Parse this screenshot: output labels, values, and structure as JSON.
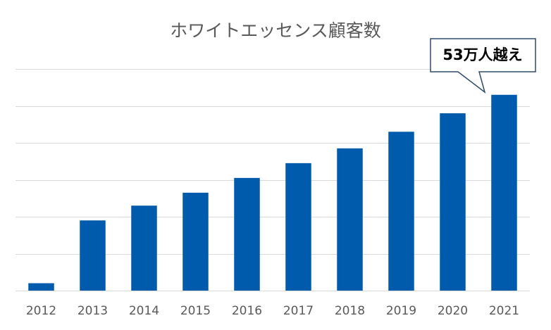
{
  "chart_data": {
    "type": "bar",
    "title": "ホワイトエッセンス顧客数",
    "xlabel": "",
    "ylabel": "",
    "categories": [
      "2012",
      "2013",
      "2014",
      "2015",
      "2016",
      "2017",
      "2018",
      "2019",
      "2020",
      "2021"
    ],
    "values": [
      2,
      19,
      23,
      26.5,
      30.5,
      34.5,
      38.5,
      43,
      48,
      53
    ],
    "ylim": [
      0,
      60
    ],
    "grid": true,
    "y_tick_labels_shown": false,
    "legend": "none",
    "bar_color": "#005bac",
    "annotation": {
      "text": "53万人越え",
      "target_category": "2021"
    }
  }
}
